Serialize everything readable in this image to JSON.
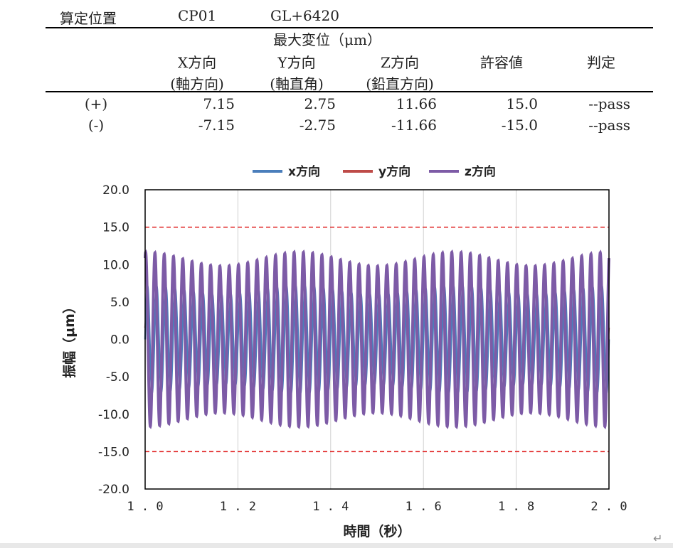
{
  "header": {
    "label": "算定位置",
    "point": "CP01",
    "level": "GL+6420"
  },
  "table": {
    "group_title": "最大変位（μm）",
    "columns": [
      {
        "name": "X方向",
        "sub": "(軸方向)"
      },
      {
        "name": "Y方向",
        "sub": "(軸直角)"
      },
      {
        "name": "Z方向",
        "sub": "(鉛直方向)"
      },
      {
        "name": "許容値",
        "sub": ""
      },
      {
        "name": "判定",
        "sub": ""
      }
    ],
    "rows": [
      {
        "label": "(+)",
        "x": "7.15",
        "y": "2.75",
        "z": "11.66",
        "allow": "15.0",
        "judge": "--pass"
      },
      {
        "label": "(-)",
        "x": "-7.15",
        "y": "-2.75",
        "z": "-11.66",
        "allow": "-15.0",
        "judge": "--pass"
      }
    ]
  },
  "chart_data": {
    "type": "line",
    "xlabel": "時間（秒）",
    "ylabel": "振幅（μm）",
    "xlim": [
      1.0,
      2.0
    ],
    "ylim": [
      -20.0,
      20.0
    ],
    "xticks": [
      "1.0",
      "1.2",
      "1.4",
      "1.6",
      "1.8",
      "2.0"
    ],
    "yticks": [
      "20.0",
      "15.0",
      "10.0",
      "5.0",
      "0.0",
      "-5.0",
      "-10.0",
      "-15.0",
      "-20.0"
    ],
    "grid": "vertical",
    "legend_position": "top",
    "limit_lines": [
      15.0,
      -15.0
    ],
    "limit_color": "#e02020",
    "series": [
      {
        "name": "x方向",
        "color": "#4a7ebb",
        "amplitude": 7.15,
        "cycles": 50
      },
      {
        "name": "y方向",
        "color": "#be4b48",
        "amplitude": 2.75,
        "cycles": 50
      },
      {
        "name": "z方向",
        "color": "#7d5ba6",
        "amplitude": 11.66,
        "cycles": 50
      }
    ]
  }
}
